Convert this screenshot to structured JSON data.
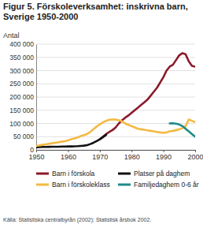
{
  "chart_data": {
    "type": "line",
    "title": "Figur 5. Förskoleverksamhet: inskrivna barn, Sverige 1950-2000",
    "y_label": "Antal",
    "source": "Källa: Statistiska centralbyrån (2002): Statistisk årsbok 2002.",
    "x": [
      1950,
      1951,
      1952,
      1953,
      1954,
      1955,
      1956,
      1957,
      1958,
      1959,
      1960,
      1961,
      1962,
      1963,
      1964,
      1965,
      1966,
      1967,
      1968,
      1969,
      1970,
      1971,
      1972,
      1973,
      1974,
      1975,
      1976,
      1977,
      1978,
      1979,
      1980,
      1981,
      1982,
      1983,
      1984,
      1985,
      1986,
      1987,
      1988,
      1989,
      1990,
      1991,
      1992,
      1993,
      1994,
      1995,
      1996,
      1997,
      1998,
      1999,
      2000
    ],
    "series": [
      {
        "name": "Barn i förskola",
        "color": "#8b1a2b",
        "values": [
          null,
          null,
          null,
          null,
          null,
          null,
          null,
          null,
          null,
          null,
          null,
          null,
          null,
          null,
          null,
          null,
          null,
          null,
          null,
          null,
          40000,
          50000,
          60000,
          68000,
          75000,
          85000,
          100000,
          112000,
          122000,
          130000,
          140000,
          150000,
          160000,
          170000,
          180000,
          190000,
          205000,
          220000,
          235000,
          255000,
          275000,
          300000,
          315000,
          322000,
          340000,
          358000,
          366000,
          362000,
          335000,
          318000,
          315000
        ]
      },
      {
        "name": "Platser på daghem",
        "color": "#111111",
        "values": [
          10000,
          10500,
          11000,
          11000,
          11500,
          12000,
          12000,
          12000,
          12500,
          12500,
          13000,
          13000,
          13500,
          14000,
          15000,
          16000,
          18000,
          22000,
          27000,
          33000,
          40000,
          48000,
          57000,
          null,
          null,
          null,
          null,
          null,
          null,
          null,
          null,
          null,
          null,
          null,
          null,
          null,
          null,
          null,
          null,
          null,
          null,
          null,
          null,
          null,
          null,
          null,
          null,
          null,
          null,
          null,
          null
        ]
      },
      {
        "name": "Barn i förskoleklass",
        "color": "#f4b942",
        "values": [
          15000,
          17000,
          19000,
          21000,
          23000,
          25000,
          27000,
          29000,
          31000,
          33000,
          36000,
          40000,
          43000,
          47000,
          52000,
          56000,
          60000,
          68000,
          78000,
          88000,
          97000,
          104000,
          110000,
          114000,
          115000,
          115000,
          112000,
          108000,
          100000,
          95000,
          90000,
          85000,
          80000,
          78000,
          76000,
          74000,
          72000,
          70000,
          68000,
          66000,
          65000,
          66000,
          70000,
          72000,
          75000,
          78000,
          82000,
          90000,
          115000,
          110000,
          105000
        ]
      },
      {
        "name": "Familjedaghem 0-6 år",
        "color": "#1f8a8a",
        "values": [
          null,
          null,
          null,
          null,
          null,
          null,
          null,
          null,
          null,
          null,
          null,
          null,
          null,
          null,
          null,
          null,
          null,
          null,
          null,
          null,
          null,
          null,
          null,
          null,
          null,
          null,
          null,
          null,
          null,
          null,
          null,
          null,
          null,
          null,
          null,
          null,
          null,
          null,
          null,
          null,
          null,
          null,
          100000,
          101000,
          99000,
          96000,
          90000,
          80000,
          70000,
          60000,
          50000
        ]
      }
    ],
    "xlim": [
      1950,
      2000
    ],
    "xticks": [
      1950,
      1960,
      1970,
      1980,
      1990,
      2000
    ],
    "ylim": [
      0,
      400000
    ],
    "yticks": [
      0,
      {
        "value": 50000,
        "label": "50 000"
      },
      {
        "value": 100000,
        "label": "100 000"
      },
      {
        "value": 150000,
        "label": "150 000"
      },
      {
        "value": 200000,
        "label": "200 000"
      },
      {
        "value": 250000,
        "label": "250 000"
      },
      {
        "value": 300000,
        "label": "300 000"
      },
      {
        "value": 350000,
        "label": "350 000"
      },
      {
        "value": 400000,
        "label": "400 000"
      }
    ],
    "grid": true,
    "legend": "bottom"
  }
}
